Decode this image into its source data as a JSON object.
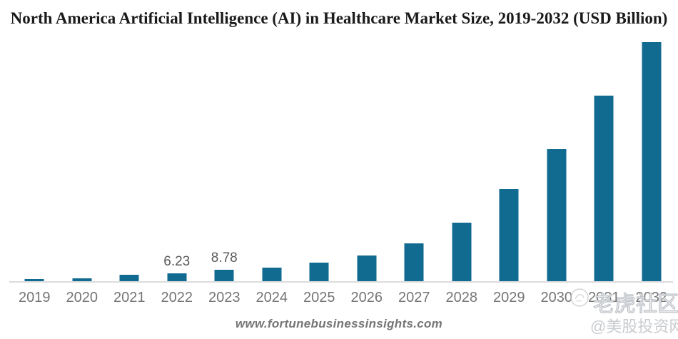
{
  "title": "North America Artificial Intelligence (AI) in Healthcare Market Size, 2019-2032 (USD Billion)",
  "source": "www.fortunebusinessinsights.com",
  "watermark": {
    "community": "老虎社区",
    "handle": "@美股投资网",
    "logo_icon": "tiger-circle-logo"
  },
  "colors": {
    "bar": "#116B90",
    "axis_line": "#DCDCDC",
    "tick_label": "#757575",
    "data_label": "#595959",
    "source_text": "#757575",
    "title_text": "#1A1A1A",
    "watermark_text": "#C9CCCF"
  },
  "chart_data": {
    "type": "bar",
    "title": "North America Artificial Intelligence (AI) in Healthcare Market Size, 2019-2032 (USD Billion)",
    "categories": [
      "2019",
      "2020",
      "2021",
      "2022",
      "2023",
      "2024",
      "2025",
      "2026",
      "2027",
      "2028",
      "2029",
      "2030",
      "2031",
      "2032"
    ],
    "values": [
      2.3,
      2.8,
      4.9,
      6.23,
      8.78,
      10.5,
      14.0,
      18.8,
      27.8,
      42.5,
      66.5,
      95.0,
      133.5,
      172.0
    ],
    "data_labels": {
      "2022": "6.23",
      "2023": "8.78"
    },
    "xlabel": "",
    "ylabel": "",
    "ylim": [
      0,
      180
    ],
    "grid": false,
    "legend": false,
    "y_axis_visible": false,
    "x_axis_line": true,
    "bar_color": "#116B90",
    "units": "USD Billion"
  }
}
